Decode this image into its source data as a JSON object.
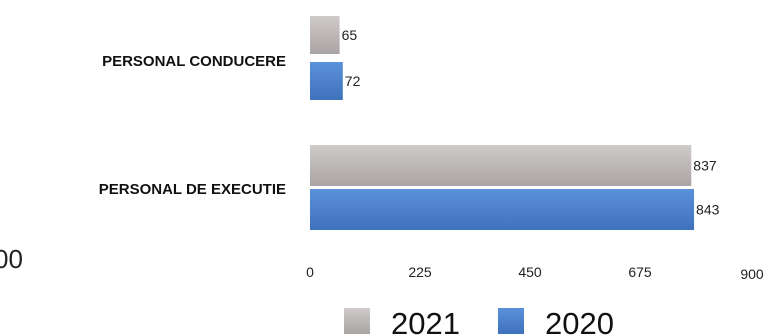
{
  "chart_data": {
    "type": "bar",
    "orientation": "horizontal",
    "categories": [
      "PERSONAL CONDUCERE",
      "PERSONAL DE EXECUTIE"
    ],
    "series": [
      {
        "name": "2021",
        "values": [
          65,
          837
        ],
        "color": "#b9b4b3"
      },
      {
        "name": "2020",
        "values": [
          72,
          843
        ],
        "color": "#4a7fcb"
      }
    ],
    "xlim": [
      0,
      900
    ],
    "x_ticks": [
      "0",
      "225",
      "450",
      "675",
      "900"
    ],
    "grid": false,
    "legend_position": "bottom"
  },
  "partial_text": "00"
}
